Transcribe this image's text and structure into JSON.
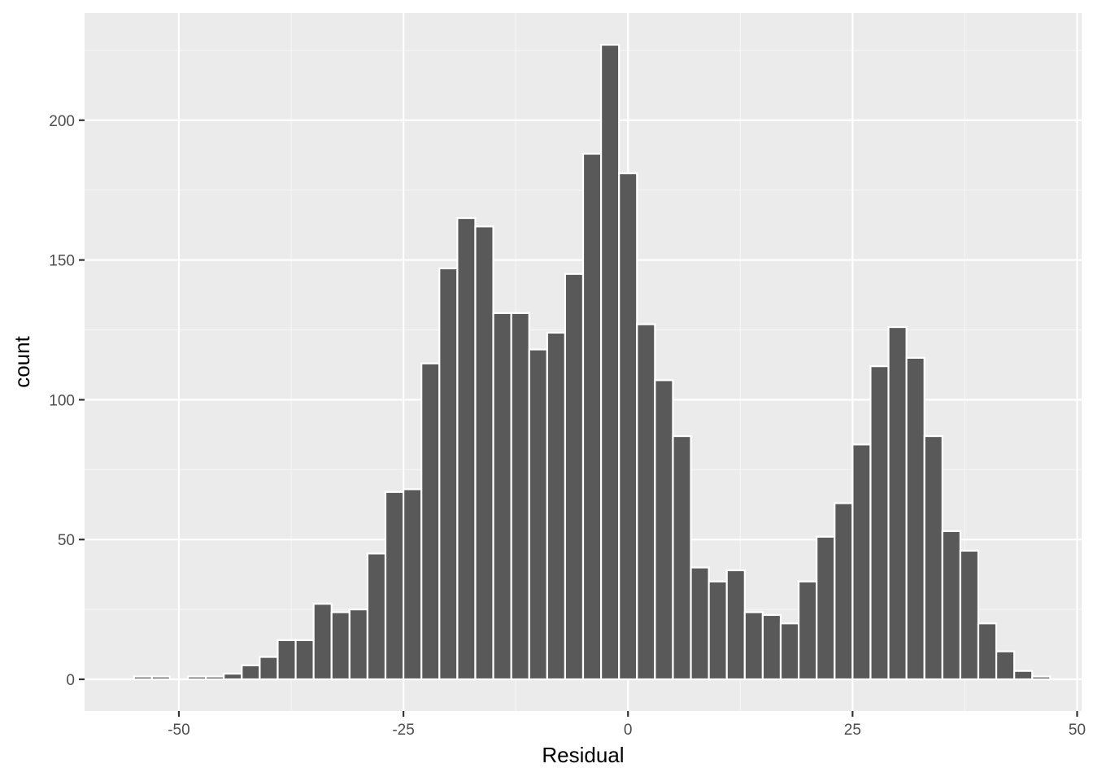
{
  "chart_data": {
    "type": "bar",
    "subtype": "histogram",
    "title": "",
    "xlabel": "Residual",
    "ylabel": "count",
    "bin_width": 2.0,
    "bin_start": -55.0,
    "counts": [
      1,
      1,
      0,
      1,
      1,
      2,
      5,
      8,
      14,
      14,
      27,
      24,
      25,
      45,
      67,
      68,
      113,
      147,
      165,
      162,
      131,
      131,
      118,
      124,
      145,
      188,
      227,
      181,
      127,
      107,
      87,
      40,
      35,
      39,
      24,
      23,
      20,
      35,
      51,
      63,
      84,
      112,
      126,
      115,
      87,
      53,
      46,
      20,
      10,
      3,
      1
    ],
    "xlim": [
      -60.5,
      50.5
    ],
    "ylim": [
      -11.35,
      238.35
    ],
    "x_ticks": [
      -50,
      -25,
      0,
      25,
      50
    ],
    "x_tick_labels": [
      "-50",
      "-25",
      "0",
      "25",
      "50"
    ],
    "y_ticks": [
      0,
      50,
      100,
      150,
      200
    ],
    "y_tick_labels": [
      "0",
      "50",
      "100",
      "150",
      "200"
    ],
    "grid": true,
    "legend": "none",
    "colors": {
      "bar_fill": "#595959",
      "bar_outline": "#ffffff",
      "panel_background": "#ebebeb",
      "grid_major": "#ffffff",
      "grid_minor": "#f5f5f5",
      "tick_color": "#333333"
    }
  }
}
